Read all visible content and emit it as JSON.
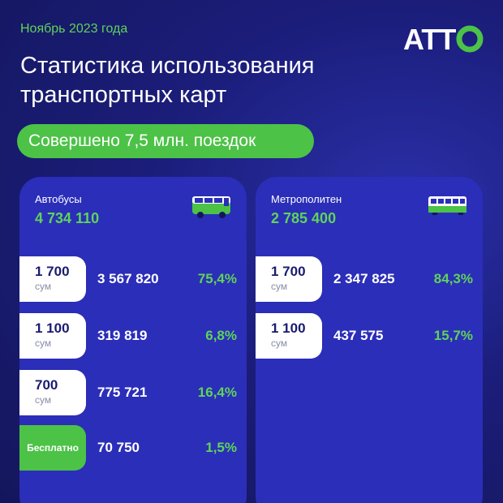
{
  "header": {
    "date": "Ноябрь 2023 года",
    "logo": "ATTO",
    "title": "Статистика использования транспортных карт",
    "summary": "Совершено 7,5 млн. поездок"
  },
  "colors": {
    "background": "#1b1d7a",
    "card": "#2b2eb8",
    "accent_green": "#4cc247",
    "fare_text": "#1a1c6e"
  },
  "bus": {
    "label": "Автобусы",
    "total": "4 734 110",
    "icon": "bus-icon",
    "rows": [
      {
        "fare": "1 700",
        "unit": "сум",
        "count": "3 567 820",
        "percent": "75,4%"
      },
      {
        "fare": "1 100",
        "unit": "сум",
        "count": "319 819",
        "percent": "6,8%"
      },
      {
        "fare": "700",
        "unit": "сум",
        "count": "775 721",
        "percent": "16,4%"
      },
      {
        "fare": "Бесплатно",
        "count": "70 750",
        "percent": "1,5%"
      }
    ]
  },
  "metro": {
    "label": "Метрополитен",
    "total": "2 785 400",
    "icon": "metro-train-icon",
    "rows": [
      {
        "fare": "1 700",
        "unit": "сум",
        "count": "2 347 825",
        "percent": "84,3%"
      },
      {
        "fare": "1 100",
        "unit": "сум",
        "count": "437 575",
        "percent": "15,7%"
      }
    ]
  }
}
